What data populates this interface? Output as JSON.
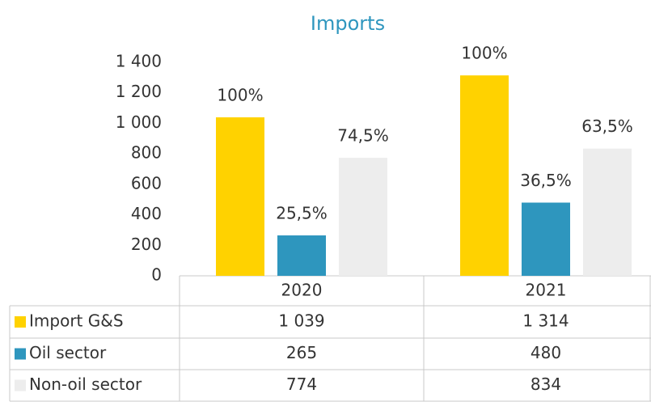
{
  "chart_data": {
    "type": "bar",
    "title": "Imports",
    "categories": [
      "2020",
      "2021"
    ],
    "series": [
      {
        "name": "Import G&S",
        "color": "#ffd200",
        "values": [
          1039,
          1314
        ],
        "value_labels": [
          "1 039",
          "1 314"
        ],
        "data_labels": [
          "100%",
          "100%"
        ]
      },
      {
        "name": "Oil sector",
        "color": "#2e96be",
        "values": [
          265,
          480
        ],
        "data_labels": [
          "25,5%",
          "36,5%"
        ]
      },
      {
        "name": "Non-oil sector",
        "color": "#ededed",
        "values": [
          774,
          834
        ],
        "data_labels": [
          "74,5%",
          "63,5%"
        ]
      }
    ],
    "ylim": [
      0,
      1400
    ],
    "yticks": [
      0,
      200,
      400,
      600,
      800,
      {
        "value": 1000,
        "label": "1 000"
      },
      {
        "value": 1200,
        "label": "1 200"
      },
      {
        "value": 1400,
        "label": "1 400"
      }
    ]
  }
}
